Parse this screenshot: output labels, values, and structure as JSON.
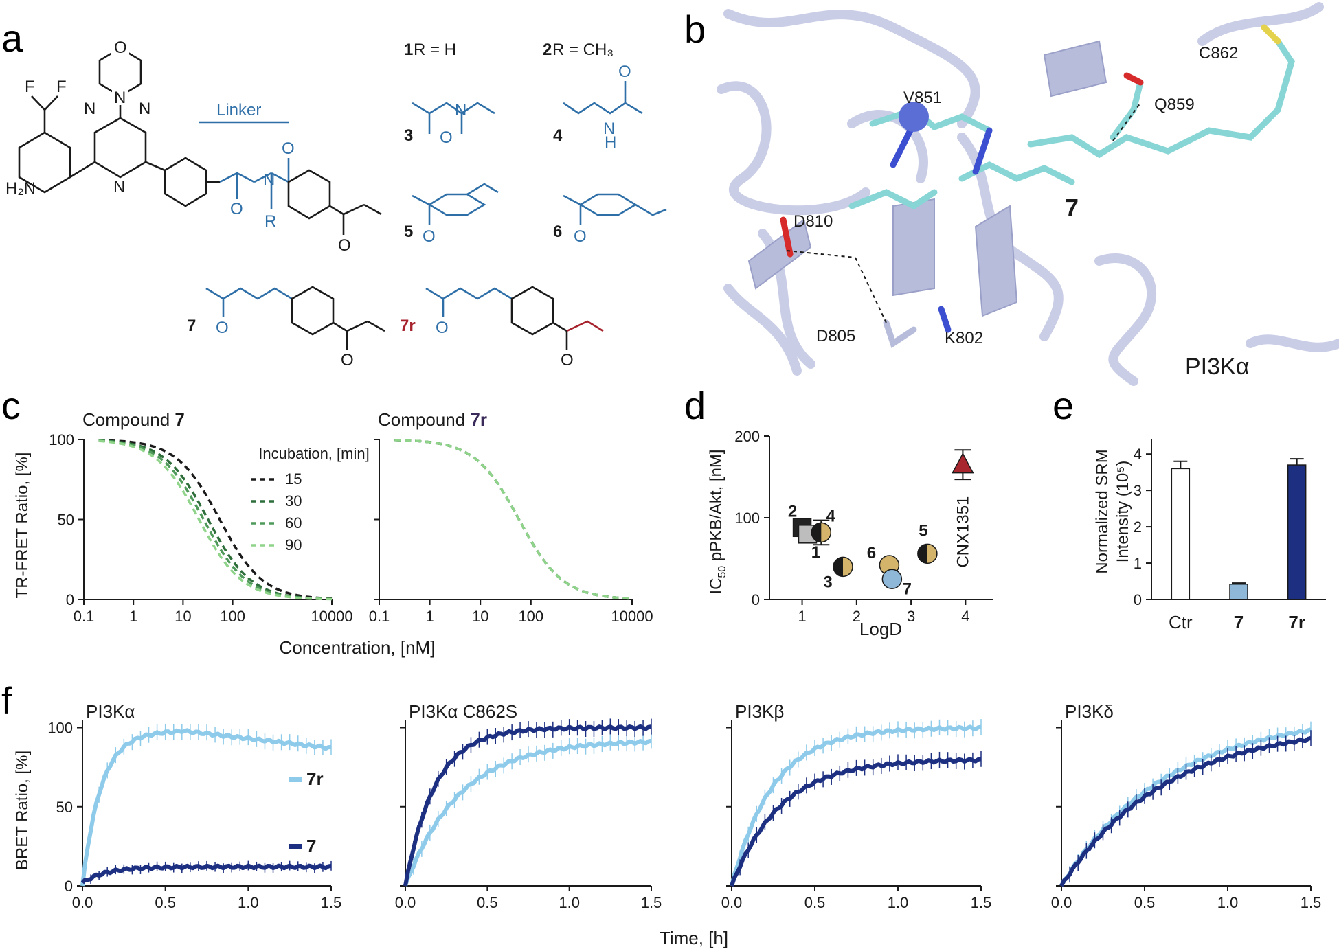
{
  "panel_labels": {
    "a": "a",
    "b": "b",
    "c": "c",
    "d": "d",
    "e": "e",
    "f": "f"
  },
  "colors": {
    "blue_linker": "#2f6fa8",
    "red_7r": "#a6222c",
    "light_blue": "#8ecae9",
    "dark_blue": "#1c2f80",
    "green_dark": "#2e6e3a",
    "green_light": "#8fd48a",
    "protein": "#c9cde6",
    "ligand": "#88d5d5",
    "nitrogen": "#3c4fd0",
    "oxygen": "#d72a2a",
    "sulfur": "#e4d24c",
    "tan": "#d4b46a",
    "bar_mid": "#8fb8d8",
    "cnx_red": "#a8262e"
  },
  "panel_a": {
    "linker_label": "Linker",
    "h2n": "H₂N",
    "F": "F",
    "N": "N",
    "O": "O",
    "R": "R",
    "compound_1": "1",
    "compound_1_rest": " R = H",
    "compound_2": "2",
    "compound_2_rest": " R = CH₃",
    "id_3": "3",
    "id_4": "4",
    "id_5": "5",
    "id_6": "6",
    "id_7": "7",
    "id_7r": "7r",
    "H": "H"
  },
  "panel_b": {
    "residues": [
      "V851",
      "Q859",
      "C862",
      "D810",
      "D805",
      "K802"
    ],
    "ligand_label": "7",
    "protein_label": "PI3Kα"
  },
  "chart_data": [
    {
      "panel": "c-left",
      "type": "line",
      "title_prefix": "Compound ",
      "title_bold": "7",
      "xlabel": "Concentration, [nM]",
      "ylabel": "TR-FRET Ratio, [%]",
      "xscale": "log",
      "xlim": [
        0.1,
        10000
      ],
      "ylim": [
        0,
        100
      ],
      "xticks": [
        "0.1",
        "1",
        "10",
        "100",
        "10000"
      ],
      "yticks": [
        "0",
        "50",
        "100"
      ],
      "legend_title": "Incubation, [min]",
      "series": [
        {
          "name": "15",
          "ic50": 55,
          "hill": 1.0,
          "color": "#1a1a1a"
        },
        {
          "name": "30",
          "ic50": 32,
          "hill": 1.0,
          "color": "#2e6e3a"
        },
        {
          "name": "60",
          "ic50": 26,
          "hill": 1.0,
          "color": "#4f9a5a"
        },
        {
          "name": "90",
          "ic50": 21,
          "hill": 1.0,
          "color": "#8fd48a"
        }
      ]
    },
    {
      "panel": "c-right",
      "type": "line",
      "title_prefix": "Compound ",
      "title_bold": "7r",
      "xscale": "log",
      "xlim": [
        0.1,
        10000
      ],
      "ylim": [
        0,
        100
      ],
      "xticks": [
        "0.1",
        "1",
        "10",
        "100",
        "10000"
      ],
      "series": [
        {
          "name": "15",
          "ic50": 58,
          "hill": 1.0,
          "color": "#1a1a1a"
        },
        {
          "name": "30",
          "ic50": 58,
          "hill": 1.0,
          "color": "#2e6e3a"
        },
        {
          "name": "60",
          "ic50": 58,
          "hill": 1.0,
          "color": "#4f9a5a"
        },
        {
          "name": "90",
          "ic50": 58,
          "hill": 1.0,
          "color": "#8fd48a"
        }
      ]
    },
    {
      "panel": "d",
      "type": "scatter",
      "xlabel": "LogD",
      "ylabel_sub": "IC",
      "ylabel_subscript": "50",
      "ylabel_rest": " pPKB/Akt, [nM]",
      "xlim": [
        0.4,
        4.5
      ],
      "ylim": [
        0,
        200
      ],
      "xticks": [
        "1",
        "2",
        "3",
        "4"
      ],
      "yticks": [
        "0",
        "100",
        "200"
      ],
      "points": [
        {
          "label": "2",
          "x": 1.0,
          "y": 88,
          "marker": "square",
          "fill": "#222222"
        },
        {
          "label": "1",
          "x": 1.1,
          "y": 80,
          "marker": "square",
          "fill": "#bdbdbd"
        },
        {
          "label": "4",
          "x": 1.35,
          "y": 82,
          "marker": "circle",
          "fill": "#d4b46a",
          "err": 15
        },
        {
          "label": "3",
          "x": 1.75,
          "y": 40,
          "marker": "circle",
          "fill": "#d4b46a"
        },
        {
          "label": "6",
          "x": 2.6,
          "y": 42,
          "marker": "circle",
          "fill": "#d4b46a"
        },
        {
          "label": "7",
          "x": 2.65,
          "y": 25,
          "marker": "circle",
          "fill": "#8fb8d8"
        },
        {
          "label": "5",
          "x": 3.3,
          "y": 56,
          "marker": "circle",
          "fill": "#d4b46a"
        },
        {
          "label": "CNX1351",
          "x": 3.95,
          "y": 165,
          "marker": "triangle",
          "fill": "#a8262e",
          "err": 18
        }
      ]
    },
    {
      "panel": "e",
      "type": "bar",
      "ylabel_line1": "Normalized SRM",
      "ylabel_line2": "Intensity (10⁵)",
      "categories": [
        "Ctr",
        "7",
        "7r"
      ],
      "values": [
        3.6,
        0.42,
        3.7
      ],
      "errors": [
        0.2,
        0.03,
        0.17
      ],
      "ylim": [
        0,
        4.4
      ],
      "yticks": [
        "0",
        "1",
        "2",
        "3",
        "4"
      ]
    },
    {
      "panel": "f-1",
      "type": "line",
      "title": "PI3Kα",
      "ylabel": "BRET Ratio, [%]",
      "xlim": [
        0,
        1.5
      ],
      "ylim": [
        0,
        105
      ],
      "xticks": [
        "0.0",
        "0.5",
        "1.0",
        "1.5"
      ],
      "yticks": [
        "0",
        "50",
        "100"
      ],
      "series": [
        {
          "name": "7r",
          "plateau": 98,
          "k": 9.0,
          "drop_from": 0.6,
          "end": 87,
          "color": "#8ecae9"
        },
        {
          "name": "7",
          "plateau": 12,
          "k": 7.0,
          "start": 2,
          "color": "#1c2f80"
        }
      ]
    },
    {
      "panel": "f-2",
      "type": "line",
      "title": "PI3Kα C862S",
      "xlim": [
        0,
        1.5
      ],
      "ylim": [
        0,
        105
      ],
      "xticks": [
        "0.0",
        "0.5",
        "1.0",
        "1.5"
      ],
      "series": [
        {
          "name": "7r",
          "plateau": 92,
          "k": 3.0,
          "color": "#8ecae9"
        },
        {
          "name": "7",
          "plateau": 100,
          "k": 5.5,
          "color": "#1c2f80"
        }
      ]
    },
    {
      "panel": "f-3",
      "type": "line",
      "title": "PI3Kβ",
      "xlim": [
        0,
        1.5
      ],
      "ylim": [
        0,
        105
      ],
      "xticks": [
        "0.0",
        "0.5",
        "1.0",
        "1.5"
      ],
      "series": [
        {
          "name": "7r",
          "plateau": 100,
          "k": 4.0,
          "color": "#8ecae9"
        },
        {
          "name": "7",
          "plateau": 80,
          "k": 3.4,
          "color": "#1c2f80"
        }
      ]
    },
    {
      "panel": "f-4",
      "type": "line",
      "title": "PI3Kδ",
      "xlim": [
        0,
        1.5
      ],
      "ylim": [
        0,
        105
      ],
      "xticks": [
        "0.0",
        "0.5",
        "1.0",
        "1.5"
      ],
      "series": [
        {
          "name": "7r",
          "plateau": 108,
          "k": 1.6,
          "color": "#8ecae9"
        },
        {
          "name": "7",
          "plateau": 102,
          "k": 1.6,
          "color": "#1c2f80"
        }
      ]
    }
  ],
  "f_shared_xlabel": "Time, [h]"
}
